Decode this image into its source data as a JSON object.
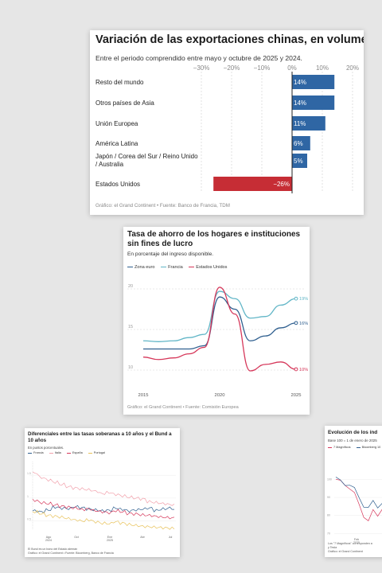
{
  "card1": {
    "title": "Variación de las exportaciones chinas, en volumen",
    "subtitle": "Entre el periodo comprendido entre mayo y octubre de 2025 y 2024.",
    "source": "Gráfico: el Grand Continent • Fuente: Banco de Francia, TDM"
  },
  "card2": {
    "title": "Tasa de ahorro de los hogares e instituciones sin fines de lucro",
    "subtitle": "En porcentaje del ingreso disponible.",
    "source": "Gráfico: el Grand Continent • Fuente: Comisión Europea",
    "legend": [
      "Zona euro",
      "Francia",
      "Estados Unidos"
    ]
  },
  "card3": {
    "title": "Diferenciales entre las tasas soberanas a 10 años y el Bund a 10 años",
    "subtitle": "En puntos porcentuales.",
    "legend": [
      "Francia",
      "Italia",
      "España",
      "Portugal"
    ],
    "note1": "El Bund es un bono del Estado alemán",
    "note2": "Gráfico: el Grand Continent • Fuente: Bloomberg, Banco de Francia"
  },
  "card4": {
    "title": "Evolución de los índ",
    "subtitle": "Base 100 = 1 de enero de 2025",
    "legend": [
      "7 Magníficos",
      "Bloomberg 10"
    ],
    "note1": "Los \"7 Magníficos\" corresponden a",
    "note2": "y Tesla",
    "note3": "Gráfico: el Grand Continent"
  },
  "colors": {
    "blue": "#2f66a4",
    "red": "#c62d35",
    "euro": "#2f5f8f",
    "francia": "#62b6c7",
    "eeuu": "#d6375a",
    "italia": "#f2a0ab",
    "espana": "#e8c25a"
  },
  "chart_data": [
    {
      "type": "bar",
      "orientation": "horizontal",
      "categories": [
        "Resto del mundo",
        "Otros países de Asia",
        "Unión Europea",
        "América Latina",
        "Japón / Corea del Sur / Reino Unido / Australia",
        "Estados Unidos"
      ],
      "values": [
        14,
        14,
        11,
        6,
        5,
        -26
      ],
      "value_labels": [
        "14%",
        "14%",
        "11%",
        "6%",
        "5%",
        "−26%"
      ],
      "x_ticks": [
        "−30%",
        "−20%",
        "−10%",
        "0%",
        "10%",
        "20%"
      ],
      "tick_values": [
        -30,
        -20,
        -10,
        0,
        10,
        20
      ],
      "xlim": [
        -30,
        20
      ]
    },
    {
      "type": "line",
      "x_ticks": [
        "2015",
        "2020",
        "2025"
      ],
      "y_ticks": [
        "10",
        "15",
        "20"
      ],
      "xlim": [
        2015,
        2025
      ],
      "ylim": [
        10,
        20
      ],
      "series": [
        {
          "name": "Zona euro",
          "end_label": "16%",
          "points": [
            [
              2015,
              12.6
            ],
            [
              2016,
              12.6
            ],
            [
              2017,
              12.6
            ],
            [
              2018,
              12.6
            ],
            [
              2019,
              13.0
            ],
            [
              2020,
              19.0
            ],
            [
              2021,
              17.5
            ],
            [
              2022,
              13.6
            ],
            [
              2023,
              14.2
            ],
            [
              2024,
              15.2
            ],
            [
              2025,
              15.8
            ]
          ]
        },
        {
          "name": "Francia",
          "end_label": "19%",
          "points": [
            [
              2015,
              13.6
            ],
            [
              2016,
              13.5
            ],
            [
              2017,
              13.6
            ],
            [
              2018,
              14.0
            ],
            [
              2019,
              14.4
            ],
            [
              2020,
              19.7
            ],
            [
              2021,
              18.8
            ],
            [
              2022,
              16.4
            ],
            [
              2023,
              16.6
            ],
            [
              2024,
              18.0
            ],
            [
              2025,
              18.8
            ]
          ]
        },
        {
          "name": "Estados Unidos",
          "end_label": "10%",
          "points": [
            [
              2015,
              11.6
            ],
            [
              2016,
              11.3
            ],
            [
              2017,
              11.5
            ],
            [
              2018,
              12.0
            ],
            [
              2019,
              12.8
            ],
            [
              2020,
              20.2
            ],
            [
              2021,
              16.9
            ],
            [
              2022,
              9.9
            ],
            [
              2023,
              10.7
            ],
            [
              2024,
              11.0
            ],
            [
              2025,
              10.1
            ]
          ]
        }
      ]
    },
    {
      "type": "line",
      "x_ticks": [
        "Ago 2024",
        "Oct",
        "Ene 2025",
        "Abr",
        "Jul"
      ],
      "y_ticks": [
        "0.5",
        "1",
        "1.5"
      ],
      "ylim": [
        0.3,
        1.8
      ],
      "series": [
        {
          "name": "Francia",
          "values": [
            0.72,
            0.7,
            0.74,
            0.8,
            0.78,
            0.77,
            0.81,
            0.79,
            0.76,
            0.74,
            0.72,
            0.73,
            0.78,
            0.75,
            0.72,
            0.74,
            0.76,
            0.78,
            0.73,
            0.76,
            0.78,
            0.74
          ]
        },
        {
          "name": "Italia",
          "values": [
            1.55,
            1.45,
            1.4,
            1.35,
            1.3,
            1.25,
            1.22,
            1.2,
            1.18,
            1.15,
            1.1,
            1.12,
            1.08,
            1.05,
            1.02,
            1.0,
            0.98,
            0.92,
            0.9,
            0.88,
            0.86,
            0.84
          ]
        },
        {
          "name": "España",
          "values": [
            0.95,
            0.9,
            0.88,
            0.85,
            0.82,
            0.8,
            0.78,
            0.75,
            0.76,
            0.72,
            0.7,
            0.68,
            0.72,
            0.7,
            0.66,
            0.65,
            0.63,
            0.62,
            0.6,
            0.58,
            0.57,
            0.56
          ]
        },
        {
          "name": "Portugal",
          "values": [
            0.7,
            0.66,
            0.62,
            0.6,
            0.58,
            0.55,
            0.52,
            0.5,
            0.52,
            0.48,
            0.45,
            0.44,
            0.48,
            0.45,
            0.42,
            0.4,
            0.38,
            0.37,
            0.36,
            0.35,
            0.34,
            0.33
          ]
        }
      ]
    },
    {
      "type": "line",
      "x_ticks": [
        "Feb 2025"
      ],
      "y_ticks": [
        "100",
        "90",
        "80",
        "70"
      ],
      "ylim": [
        68,
        112
      ],
      "series": [
        {
          "name": "7 Magníficos",
          "values": [
            100,
            98,
            97,
            96,
            92,
            85,
            80,
            78,
            82,
            79,
            85,
            88,
            92,
            95
          ]
        },
        {
          "name": "Bloomberg 10",
          "values": [
            100,
            99,
            98,
            97,
            94,
            90,
            86,
            84,
            87,
            85,
            88,
            91,
            93,
            95
          ]
        }
      ]
    }
  ]
}
